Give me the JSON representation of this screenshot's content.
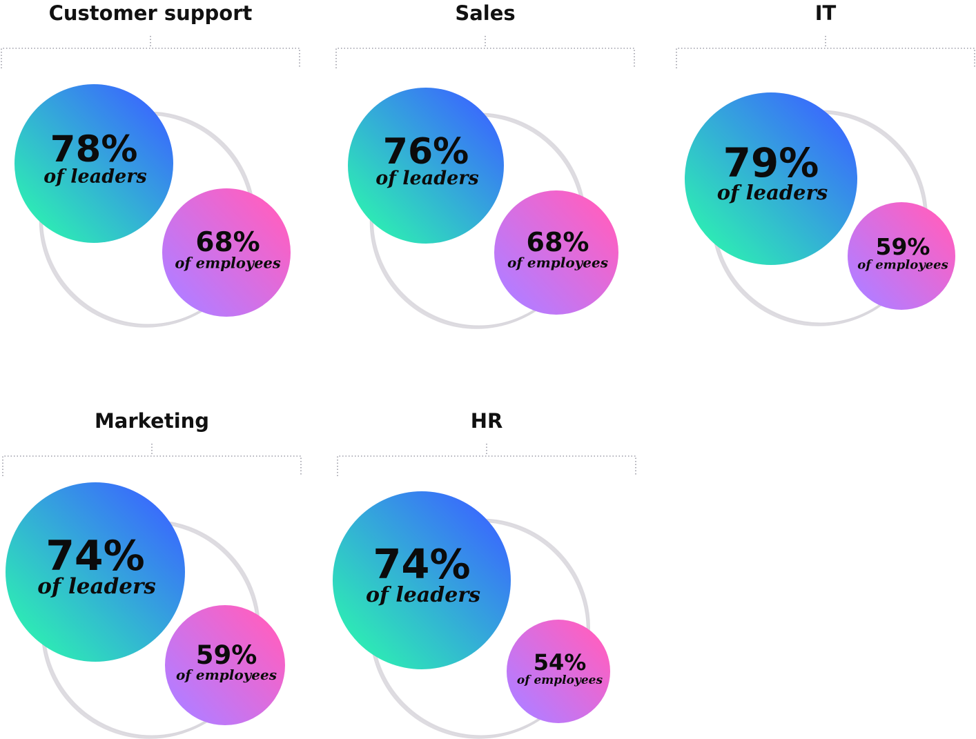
{
  "chart_data": {
    "type": "bubble",
    "series": [
      {
        "name": "",
        "label": "of leaders",
        "colors": [
          "#2ee8b6",
          "#3a66ff"
        ]
      },
      {
        "name": "",
        "label": "of employees",
        "colors": [
          "#b57cff",
          "#ff5fc0"
        ]
      }
    ],
    "groups": [
      {
        "title": "Customer support",
        "leaders": {
          "value": 78,
          "text": "78%",
          "label": "of leaders"
        },
        "employees": {
          "value": 68,
          "text": "68%",
          "label": "of employees"
        }
      },
      {
        "title": "Sales",
        "leaders": {
          "value": 76,
          "text": "76%",
          "label": "of leaders"
        },
        "employees": {
          "value": 68,
          "text": "68%",
          "label": "of employees"
        }
      },
      {
        "title": "IT",
        "leaders": {
          "value": 79,
          "text": "79%",
          "label": "of leaders"
        },
        "employees": {
          "value": 59,
          "text": "59%",
          "label": "of employees"
        }
      },
      {
        "title": "Marketing",
        "leaders": {
          "value": 74,
          "text": "74%",
          "label": "of leaders"
        },
        "employees": {
          "value": 59,
          "text": "59%",
          "label": "of employees"
        }
      },
      {
        "title": "HR",
        "leaders": {
          "value": 74,
          "text": "74%",
          "label": "of leaders"
        },
        "employees": {
          "value": 54,
          "text": "54%",
          "label": "of employees"
        }
      }
    ]
  }
}
